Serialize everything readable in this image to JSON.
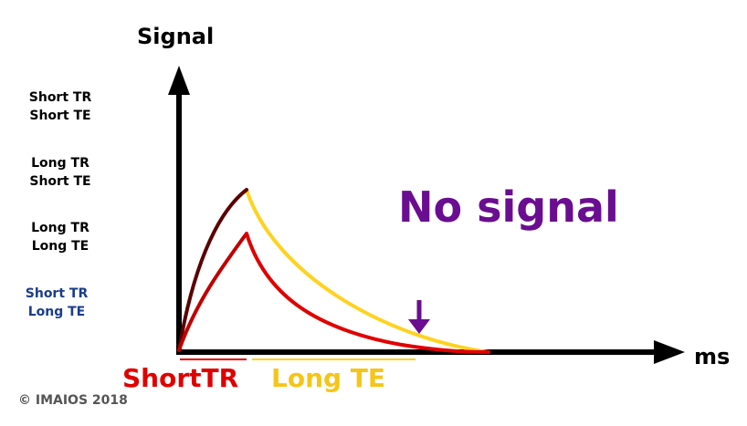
{
  "axes": {
    "y_label": "Signal",
    "x_label": "ms"
  },
  "legend_labels": [
    {
      "line1": "Short TR",
      "line2": "Short TE",
      "color": "#000000"
    },
    {
      "line1": "Long TR",
      "line2": "Short TE",
      "color": "#000000"
    },
    {
      "line1": "Long TR",
      "line2": "Long TE",
      "color": "#000000"
    },
    {
      "line1": "Short TR",
      "line2": "Long TE",
      "color": "#1a3c8c"
    }
  ],
  "annotation": {
    "text": "No signal",
    "color": "#6a0d91"
  },
  "ranges": {
    "short_tr": {
      "text": "ShortTR",
      "color": "#e00000"
    },
    "long_te": {
      "text": "Long TE",
      "color": "#f5c518"
    }
  },
  "curve_colors": {
    "dark_red": "#5a0000",
    "red": "#c00000",
    "yellow": "#ffd21f",
    "bright_red": "#e00000",
    "arrow": "#6a0d91"
  },
  "copyright": "© IMAIOS 2018"
}
